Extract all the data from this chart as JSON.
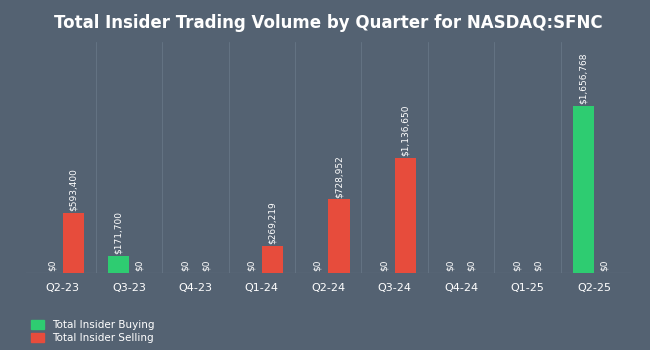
{
  "title": "Total Insider Trading Volume by Quarter for NASDAQ:SFNC",
  "quarters": [
    "Q2-23",
    "Q3-23",
    "Q4-23",
    "Q1-24",
    "Q2-24",
    "Q3-24",
    "Q4-24",
    "Q1-25",
    "Q2-25"
  ],
  "buying": [
    0,
    171700,
    0,
    0,
    0,
    0,
    0,
    0,
    1656768
  ],
  "selling": [
    593400,
    0,
    0,
    269219,
    728952,
    1136650,
    0,
    0,
    0
  ],
  "buying_color": "#2ecc71",
  "selling_color": "#e74c3c",
  "background_color": "#546272",
  "text_color": "#ffffff",
  "bar_width": 0.32,
  "title_fontsize": 12,
  "label_fontsize": 6.5,
  "tick_fontsize": 8,
  "legend_fontsize": 7.5,
  "buying_label": "Total Insider Buying",
  "selling_label": "Total Insider Selling",
  "ylim_factor": 1.38
}
